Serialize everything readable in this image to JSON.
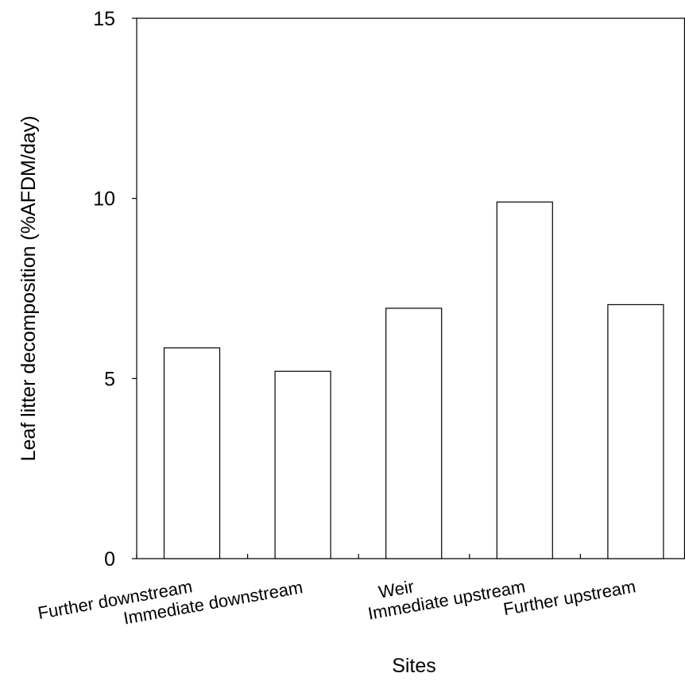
{
  "chart_data": {
    "type": "bar",
    "categories": [
      "Further downstream",
      "Immediate downstream",
      "Weir",
      "Immediate upstream",
      "Further upstream"
    ],
    "values": [
      5.85,
      5.2,
      6.95,
      9.9,
      7.05
    ],
    "xlabel": "Sites",
    "ylabel": "Leaf litter decomposition (%AFDM/day)",
    "ylim": [
      0,
      15
    ],
    "yticks": [
      0,
      5,
      10,
      15
    ],
    "ytick_labels": [
      "0",
      "5",
      "10",
      "15"
    ],
    "grid": false,
    "legend": "none",
    "bar_fill": "#ffffff",
    "bar_stroke": "#000000"
  }
}
